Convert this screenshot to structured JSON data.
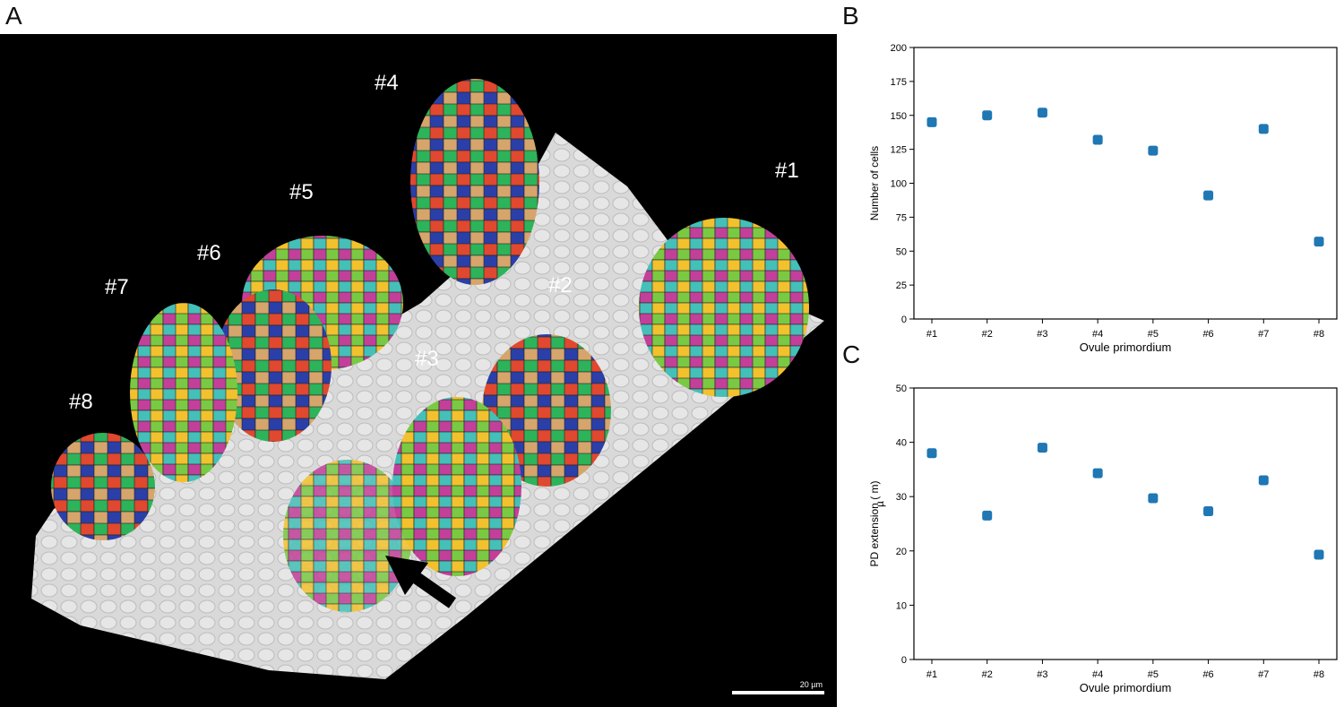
{
  "panel_labels": {
    "a": "A",
    "b": "B",
    "c": "C"
  },
  "image_panel": {
    "primordium_labels": [
      "#1",
      "#2",
      "#3",
      "#4",
      "#5",
      "#6",
      "#7",
      "#8"
    ],
    "scale_bar_label": "20 µm"
  },
  "chart_data": [
    {
      "type": "scatter",
      "categories": [
        "#1",
        "#2",
        "#3",
        "#4",
        "#5",
        "#6",
        "#7",
        "#8"
      ],
      "values": [
        145,
        150,
        152,
        132,
        124,
        91,
        140,
        57
      ],
      "xlabel": "Ovule primordium",
      "ylabel": "Number of cells",
      "ylim": [
        0,
        200
      ],
      "yticks": [
        0,
        25,
        50,
        75,
        100,
        125,
        150,
        175,
        200
      ],
      "color": "#1f77b4",
      "grid": false
    },
    {
      "type": "scatter",
      "categories": [
        "#1",
        "#2",
        "#3",
        "#4",
        "#5",
        "#6",
        "#7",
        "#8"
      ],
      "values": [
        38,
        26.5,
        39,
        34.3,
        29.7,
        27.3,
        33,
        19.3
      ],
      "xlabel": "Ovule primordium",
      "ylabel": "PD extension (  m)",
      "ylabel_glyph": "µ",
      "ylim": [
        0,
        50
      ],
      "yticks": [
        0,
        10,
        20,
        30,
        40,
        50
      ],
      "color": "#1f77b4",
      "grid": false
    }
  ]
}
